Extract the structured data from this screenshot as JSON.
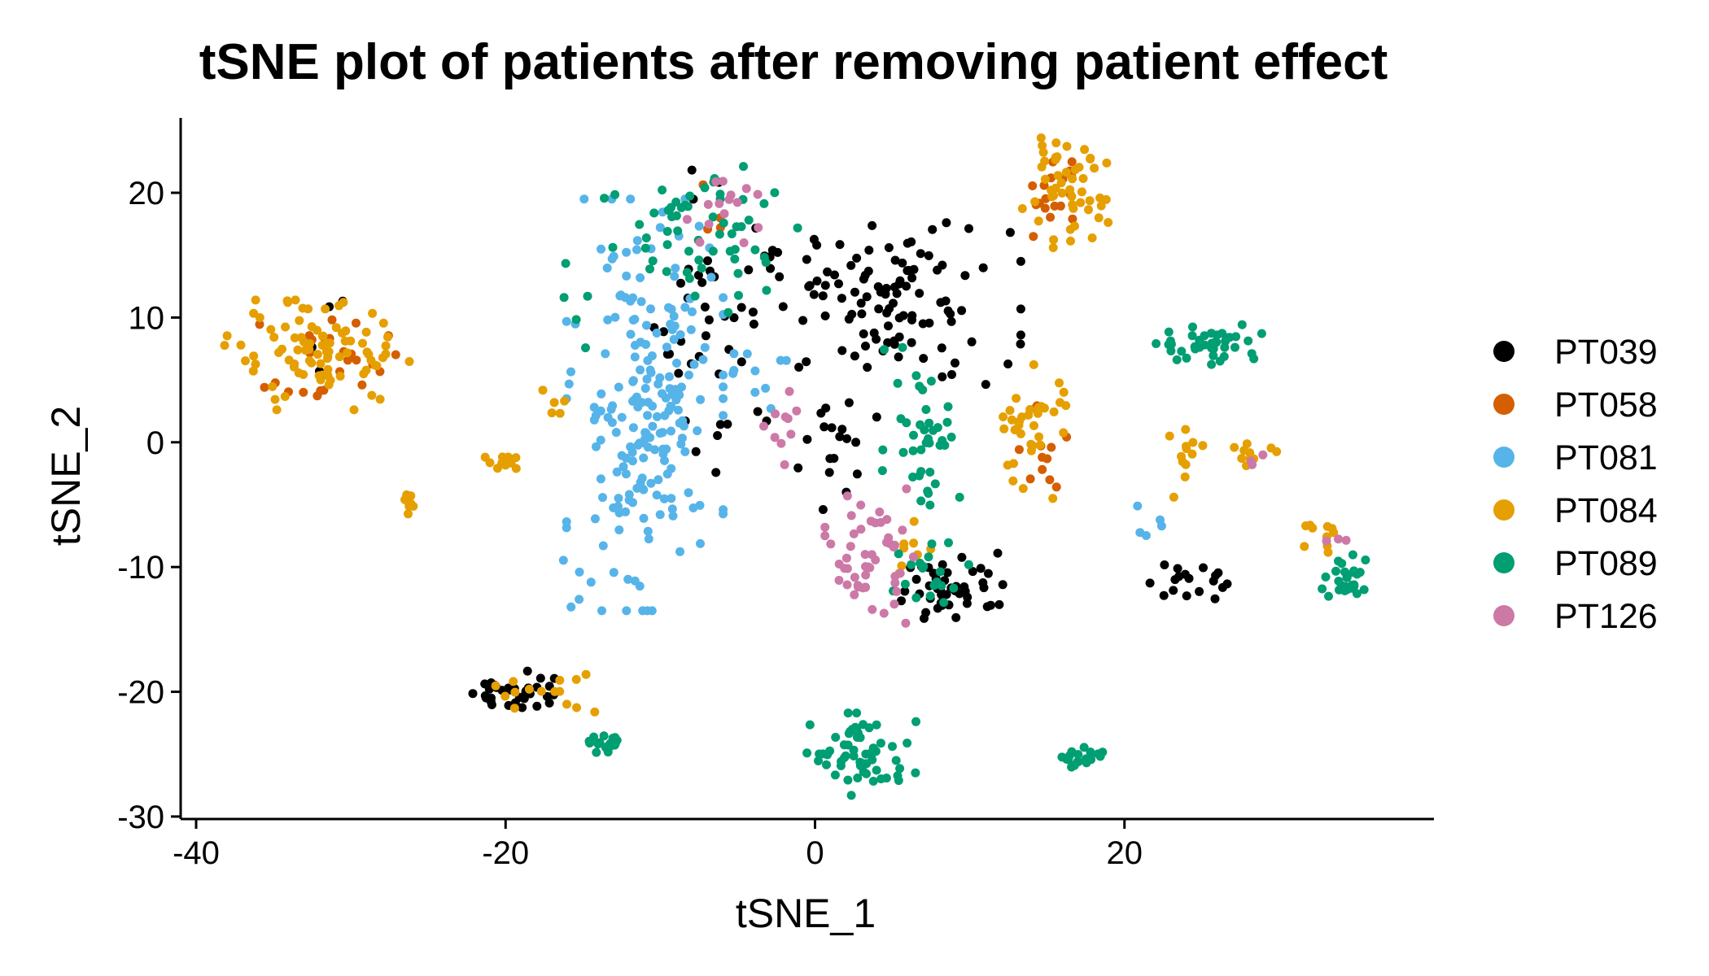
{
  "chart_data": {
    "type": "scatter",
    "title": "tSNE plot of patients after removing patient effect",
    "xlabel": "tSNE_1",
    "ylabel": "tSNE_2",
    "xlim": [
      -41,
      40
    ],
    "ylim": [
      -30.2,
      26
    ],
    "xticks": [
      -40,
      -20,
      0,
      20
    ],
    "yticks": [
      -30,
      -20,
      -10,
      0,
      10,
      20
    ],
    "grid": false,
    "legend_position": "right",
    "series": [
      {
        "name": "PT039",
        "color": "#000000"
      },
      {
        "name": "PT058",
        "color": "#D55E00"
      },
      {
        "name": "PT081",
        "color": "#56B4E9"
      },
      {
        "name": "PT084",
        "color": "#E69F00"
      },
      {
        "name": "PT089",
        "color": "#009E73"
      },
      {
        "name": "PT126",
        "color": "#CC79A7"
      }
    ],
    "clusters": [
      {
        "series": 0,
        "cx": 4.5,
        "cy": 11,
        "sx": 4.0,
        "sy": 3.0,
        "n": 110
      },
      {
        "series": 0,
        "cx": -6,
        "cy": 10,
        "sx": 2.0,
        "sy": 6.0,
        "n": 40
      },
      {
        "series": 0,
        "cx": 9,
        "cy": -11.5,
        "sx": 2.0,
        "sy": 1.3,
        "n": 45
      },
      {
        "series": 0,
        "cx": -19.5,
        "cy": -20,
        "sx": 1.3,
        "sy": 0.9,
        "n": 35
      },
      {
        "series": 0,
        "cx": 24,
        "cy": -11,
        "sx": 1.2,
        "sy": 0.8,
        "n": 18
      },
      {
        "series": 0,
        "cx": 1,
        "cy": -1,
        "sx": 1.5,
        "sy": 3.0,
        "n": 18
      },
      {
        "series": 0,
        "cx": -31,
        "cy": 9,
        "sx": 1.0,
        "sy": 1.5,
        "n": 5
      },
      {
        "series": 1,
        "cx": -31.5,
        "cy": 6.5,
        "sx": 2.0,
        "sy": 1.8,
        "n": 25
      },
      {
        "series": 1,
        "cx": 15.5,
        "cy": 19.5,
        "sx": 1.0,
        "sy": 1.5,
        "n": 18
      },
      {
        "series": 1,
        "cx": 14.5,
        "cy": 0,
        "sx": 0.8,
        "sy": 2.0,
        "n": 12
      },
      {
        "series": 1,
        "cx": -6.5,
        "cy": 18,
        "sx": 0.6,
        "sy": 1.2,
        "n": 4
      },
      {
        "series": 2,
        "cx": -11,
        "cy": 3,
        "sx": 2.3,
        "sy": 7.5,
        "n": 200
      },
      {
        "series": 2,
        "cx": -3.5,
        "cy": 6,
        "sx": 1.2,
        "sy": 1.5,
        "n": 10
      },
      {
        "series": 2,
        "cx": -14,
        "cy": -11,
        "sx": 1.5,
        "sy": 1.0,
        "n": 8
      },
      {
        "series": 2,
        "cx": 22,
        "cy": -7,
        "sx": 0.8,
        "sy": 1.0,
        "n": 5
      },
      {
        "series": 3,
        "cx": -32,
        "cy": 7,
        "sx": 2.8,
        "sy": 2.0,
        "n": 90
      },
      {
        "series": 3,
        "cx": 16,
        "cy": 20,
        "sx": 1.4,
        "sy": 2.0,
        "n": 50
      },
      {
        "series": 3,
        "cx": 14,
        "cy": 1,
        "sx": 1.3,
        "sy": 2.5,
        "n": 35
      },
      {
        "series": 3,
        "cx": 24,
        "cy": 0,
        "sx": 0.5,
        "sy": 2.0,
        "n": 12
      },
      {
        "series": 3,
        "cx": 28,
        "cy": -1,
        "sx": 1.0,
        "sy": 0.4,
        "n": 10
      },
      {
        "series": 3,
        "cx": 33.5,
        "cy": -7.5,
        "sx": 1.0,
        "sy": 0.6,
        "n": 10
      },
      {
        "series": 3,
        "cx": -18,
        "cy": -20,
        "sx": 2.0,
        "sy": 0.8,
        "n": 15
      },
      {
        "series": 3,
        "cx": -20,
        "cy": -1.5,
        "sx": 0.6,
        "sy": 0.4,
        "n": 12
      },
      {
        "series": 3,
        "cx": -26,
        "cy": -5,
        "sx": 0.4,
        "sy": 0.4,
        "n": 8
      },
      {
        "series": 3,
        "cx": 6,
        "cy": -9,
        "sx": 0.7,
        "sy": 1.5,
        "n": 8
      },
      {
        "series": 3,
        "cx": -17,
        "cy": 3,
        "sx": 0.6,
        "sy": 0.8,
        "n": 5
      },
      {
        "series": 4,
        "cx": -7,
        "cy": 17,
        "sx": 3.5,
        "sy": 3.0,
        "n": 60
      },
      {
        "series": 4,
        "cx": 7,
        "cy": 1,
        "sx": 1.2,
        "sy": 3.0,
        "n": 40
      },
      {
        "series": 4,
        "cx": 25.5,
        "cy": 8,
        "sx": 1.6,
        "sy": 0.8,
        "n": 40
      },
      {
        "series": 4,
        "cx": 34.5,
        "cy": -11,
        "sx": 0.8,
        "sy": 0.9,
        "n": 30
      },
      {
        "series": 4,
        "cx": 3,
        "cy": -25,
        "sx": 1.6,
        "sy": 1.5,
        "n": 60
      },
      {
        "series": 4,
        "cx": 7.5,
        "cy": -11,
        "sx": 1.6,
        "sy": 2.2,
        "n": 20
      },
      {
        "series": 4,
        "cx": 17.5,
        "cy": -25.3,
        "sx": 0.7,
        "sy": 0.4,
        "n": 20
      },
      {
        "series": 4,
        "cx": -13.5,
        "cy": -24.2,
        "sx": 0.8,
        "sy": 0.3,
        "n": 18
      },
      {
        "series": 4,
        "cx": -15.5,
        "cy": 10,
        "sx": 0.4,
        "sy": 2.5,
        "n": 4
      },
      {
        "series": 5,
        "cx": 3.5,
        "cy": -9,
        "sx": 1.3,
        "sy": 2.5,
        "n": 50
      },
      {
        "series": 5,
        "cx": -6,
        "cy": 19,
        "sx": 1.5,
        "sy": 1.5,
        "n": 15
      },
      {
        "series": 5,
        "cx": -2,
        "cy": 1.5,
        "sx": 0.8,
        "sy": 1.5,
        "n": 10
      },
      {
        "series": 5,
        "cx": 33.5,
        "cy": -8,
        "sx": 0.4,
        "sy": 0.4,
        "n": 3
      },
      {
        "series": 5,
        "cx": 28.5,
        "cy": -1.5,
        "sx": 0.4,
        "sy": 0.3,
        "n": 3
      }
    ]
  }
}
